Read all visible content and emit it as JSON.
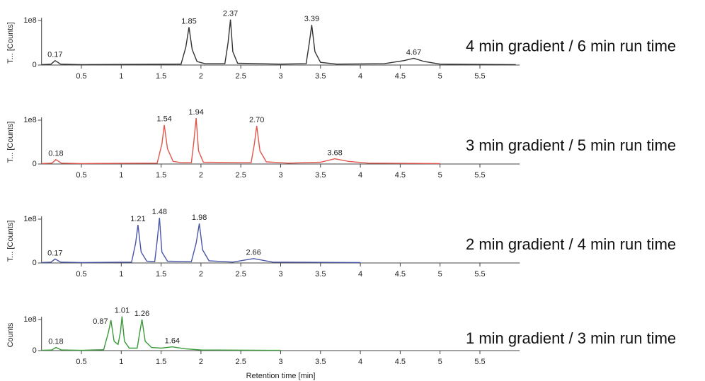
{
  "chart_data": [
    {
      "type": "line",
      "ylabel": "T... [Counts]",
      "annotation": "4 min gradient / 6 min run time",
      "color": "#333333",
      "xlim": [
        0,
        6
      ],
      "xticks": [
        0.5,
        1,
        1.5,
        2,
        2.5,
        3,
        3.5,
        4,
        4.5,
        5,
        5.5
      ],
      "ylim": [
        0,
        100000000
      ],
      "yticks": [
        0,
        {
          "value": 100000000,
          "label": "1e8"
        }
      ],
      "x": [
        0,
        0.12,
        0.17,
        0.24,
        0.5,
        1.75,
        1.81,
        1.85,
        1.89,
        1.95,
        2.05,
        2.3,
        2.34,
        2.37,
        2.4,
        2.46,
        3.0,
        3.32,
        3.36,
        3.39,
        3.43,
        3.5,
        3.7,
        4.3,
        4.55,
        4.67,
        4.8,
        5.0,
        5.95
      ],
      "values": [
        1000000,
        2000000,
        10000000,
        2000000,
        1000000,
        2000000,
        40000000,
        85000000,
        35000000,
        8000000,
        3000000,
        3000000,
        50000000,
        102000000,
        30000000,
        4000000,
        2000000,
        3000000,
        50000000,
        90000000,
        30000000,
        6000000,
        2000000,
        3000000,
        10000000,
        15000000,
        8000000,
        2000000,
        1000000
      ],
      "peaks": [
        0.17,
        1.85,
        2.37,
        3.39,
        4.67
      ]
    },
    {
      "type": "line",
      "ylabel": "T... [Counts]",
      "annotation": "3 min gradient / 5 min run time",
      "color": "#e0564c",
      "xlim": [
        0,
        6
      ],
      "xticks": [
        0.5,
        1,
        1.5,
        2,
        2.5,
        3,
        3.5,
        4,
        4.5,
        5,
        5.5
      ],
      "ylim": [
        0,
        100000000
      ],
      "yticks": [
        0,
        {
          "value": 100000000,
          "label": "1e8"
        }
      ],
      "x": [
        0,
        0.13,
        0.18,
        0.25,
        0.5,
        1.45,
        1.51,
        1.54,
        1.58,
        1.65,
        1.75,
        1.88,
        1.91,
        1.94,
        1.97,
        2.03,
        2.5,
        2.63,
        2.67,
        2.7,
        2.74,
        2.82,
        3.1,
        3.5,
        3.68,
        3.85,
        4.1,
        5.0
      ],
      "values": [
        1000000,
        2000000,
        10000000,
        2000000,
        1000000,
        2000000,
        45000000,
        89000000,
        35000000,
        6000000,
        3000000,
        3000000,
        50000000,
        105000000,
        30000000,
        4000000,
        3000000,
        3000000,
        45000000,
        87000000,
        30000000,
        5000000,
        2000000,
        4000000,
        12000000,
        6000000,
        2000000,
        1000000
      ],
      "peaks": [
        0.18,
        1.54,
        1.94,
        {
          "value": 2.7,
          "label": "2.70"
        },
        3.68
      ]
    },
    {
      "type": "line",
      "ylabel": "T... [Counts]",
      "annotation": "2 min gradient / 4 min run time",
      "color": "#4a56a6",
      "xlim": [
        0,
        6
      ],
      "xticks": [
        0.5,
        1,
        1.5,
        2,
        2.5,
        3,
        3.5,
        4,
        4.5,
        5,
        5.5
      ],
      "ylim": [
        0,
        100000000
      ],
      "yticks": [
        0,
        {
          "value": 100000000,
          "label": "1e8"
        }
      ],
      "x": [
        0,
        0.12,
        0.17,
        0.24,
        0.5,
        1.13,
        1.18,
        1.21,
        1.25,
        1.32,
        1.42,
        1.45,
        1.48,
        1.51,
        1.58,
        1.88,
        1.94,
        1.98,
        2.02,
        2.1,
        2.4,
        2.66,
        2.9,
        4.0
      ],
      "values": [
        1000000,
        2000000,
        9000000,
        2000000,
        1000000,
        2000000,
        45000000,
        87000000,
        25000000,
        4000000,
        3000000,
        50000000,
        103000000,
        25000000,
        4000000,
        3000000,
        45000000,
        90000000,
        30000000,
        5000000,
        2000000,
        10000000,
        2000000,
        1000000
      ],
      "peaks": [
        0.17,
        1.21,
        1.48,
        1.98,
        2.66
      ]
    },
    {
      "type": "line",
      "ylabel": "Counts",
      "xlabel": "Retention time [min]",
      "annotation": "1 min gradient / 3 min run time",
      "color": "#3a9a3a",
      "xlim": [
        0,
        6
      ],
      "xticks": [
        0.5,
        1,
        1.5,
        2,
        2.5,
        3,
        3.5,
        4,
        4.5,
        5,
        5.5
      ],
      "ylim": [
        0,
        100000000
      ],
      "yticks": [
        0,
        {
          "value": 100000000,
          "label": "1e8"
        }
      ],
      "x": [
        0,
        0.13,
        0.18,
        0.25,
        0.5,
        0.78,
        0.84,
        0.87,
        0.91,
        0.96,
        0.99,
        1.01,
        1.04,
        1.1,
        1.2,
        1.23,
        1.26,
        1.3,
        1.38,
        1.5,
        1.64,
        1.8,
        2.0,
        3.0
      ],
      "values": [
        1000000,
        2000000,
        10000000,
        2000000,
        1000000,
        3000000,
        60000000,
        98000000,
        30000000,
        20000000,
        60000000,
        110000000,
        30000000,
        8000000,
        8000000,
        55000000,
        100000000,
        30000000,
        10000000,
        8000000,
        12000000,
        6000000,
        2000000,
        1000000
      ],
      "peaks": [
        0.18,
        0.87,
        1.01,
        1.26,
        1.64
      ]
    }
  ]
}
